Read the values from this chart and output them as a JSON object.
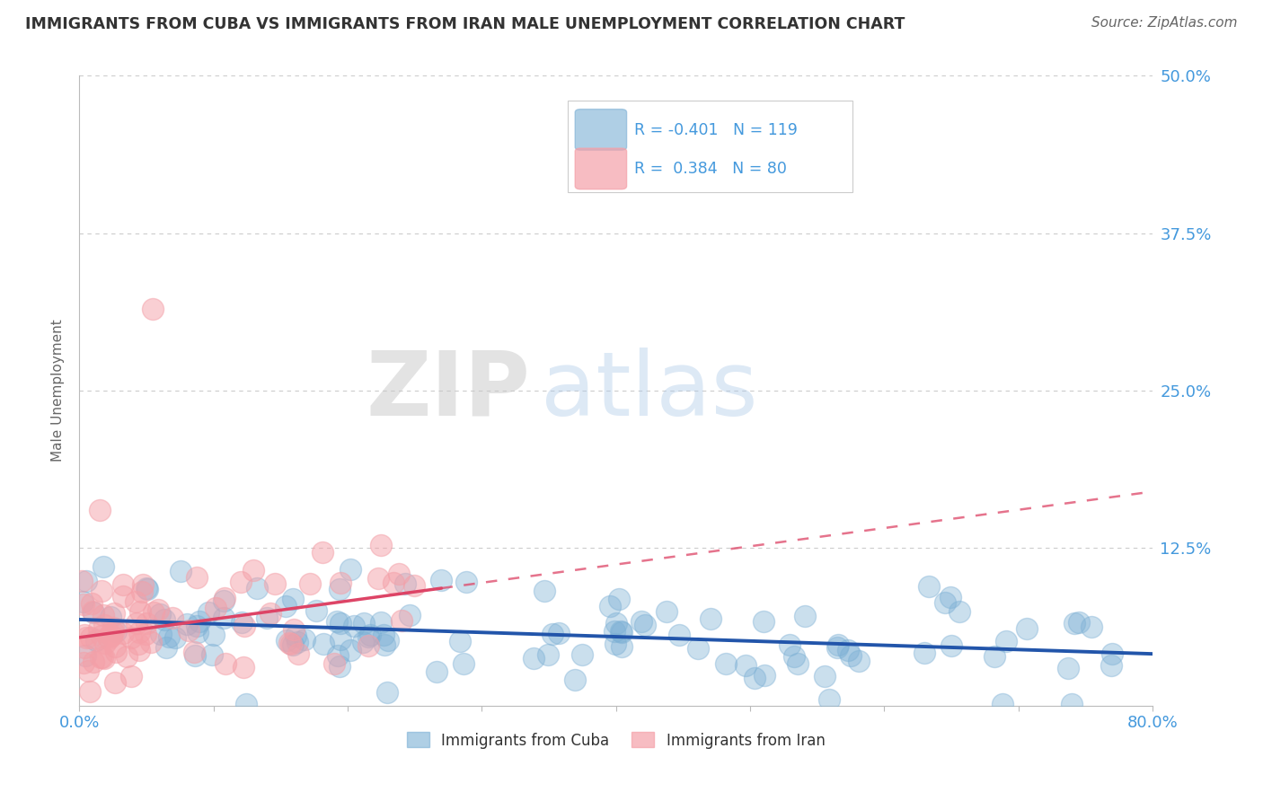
{
  "title": "IMMIGRANTS FROM CUBA VS IMMIGRANTS FROM IRAN MALE UNEMPLOYMENT CORRELATION CHART",
  "source": "Source: ZipAtlas.com",
  "ylabel": "Male Unemployment",
  "xlabel": "",
  "xlim": [
    0.0,
    0.8
  ],
  "ylim": [
    0.0,
    0.5
  ],
  "yticks": [
    0.0,
    0.125,
    0.25,
    0.375,
    0.5
  ],
  "ytick_labels": [
    "",
    "12.5%",
    "25.0%",
    "37.5%",
    "50.0%"
  ],
  "xticks": [
    0.0,
    0.1,
    0.2,
    0.3,
    0.4,
    0.5,
    0.6,
    0.7,
    0.8
  ],
  "cuba_color": "#7BAFD4",
  "iran_color": "#F4A0A8",
  "cuba_line_color": "#2255AA",
  "iran_line_color": "#DD4466",
  "cuba_R": -0.401,
  "cuba_N": 119,
  "iran_R": 0.384,
  "iran_N": 80,
  "background_color": "#ffffff",
  "grid_color": "#cccccc",
  "title_color": "#333333",
  "tick_color": "#4499DD",
  "watermark_zip": "ZIP",
  "watermark_atlas": "atlas",
  "legend_label_cuba": "Immigrants from Cuba",
  "legend_label_iran": "Immigrants from Iran",
  "iran_line_x_solid_end": 0.27,
  "iran_line_x_full_end": 0.8,
  "iran_line_y_start": 0.058,
  "iran_line_slope": 0.4
}
